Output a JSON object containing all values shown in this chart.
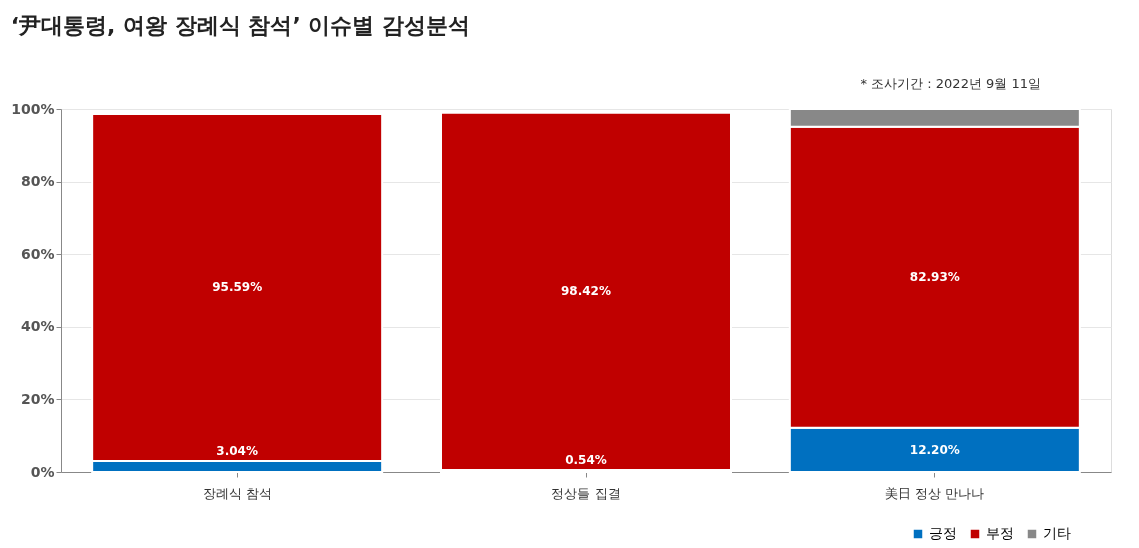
{
  "chart_data": {
    "type": "bar",
    "title": "‘尹대통령, 여왕 장례식 참석’ 이슈별 감성분석",
    "annotations": [
      "* 조사기간 : 2022년 9월 11일"
    ],
    "categories": [
      "장례식 참석",
      "정상들 집결",
      "美日 정상 만나나"
    ],
    "stacked": true,
    "series": [
      {
        "name": "긍정",
        "color": "#0070c0",
        "values": [
          3.04,
          0.54,
          12.2
        ],
        "value_labels": [
          "3.04%",
          "0.54%",
          "12.20%"
        ]
      },
      {
        "name": "부정",
        "color": "#c00000",
        "values": [
          95.59,
          98.42,
          82.93
        ],
        "value_labels": [
          "95.59%",
          "98.42%",
          "82.93%"
        ]
      },
      {
        "name": "기타",
        "color": "#888888",
        "values": [
          null,
          null,
          4.9
        ],
        "value_labels": [
          null,
          null,
          null
        ]
      }
    ],
    "ylim": [
      0,
      100
    ],
    "yticks": [
      {
        "value": 0,
        "label": "0%"
      },
      {
        "value": 20,
        "label": "20%"
      },
      {
        "value": 40,
        "label": "40%"
      },
      {
        "value": 60,
        "label": "60%"
      },
      {
        "value": 80,
        "label": "80%"
      },
      {
        "value": 100,
        "label": "100%"
      }
    ],
    "grid": "y",
    "legend": "bottom right"
  }
}
